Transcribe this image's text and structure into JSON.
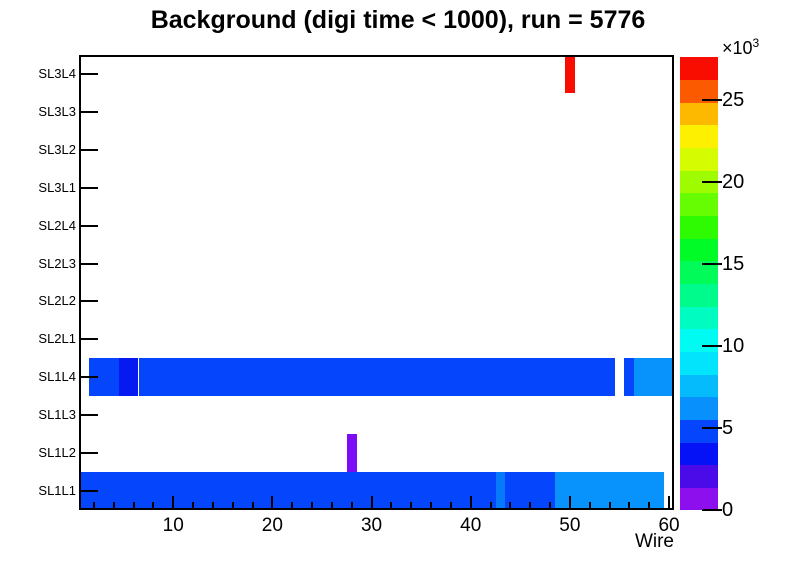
{
  "chart_data": {
    "type": "heatmap",
    "title": "Background (digi time < 1000), run = 5776",
    "xlabel": "Wire",
    "x_range": [
      0.5,
      60.5
    ],
    "x_major_ticks": [
      10,
      20,
      30,
      40,
      50,
      60
    ],
    "x_minor_tick_step": 2,
    "y_categories_bottom_to_top": [
      "SL1L1",
      "SL1L2",
      "SL1L3",
      "SL1L4",
      "SL2L1",
      "SL2L2",
      "SL2L3",
      "SL2L4",
      "SL3L1",
      "SL3L2",
      "SL3L3",
      "SL3L4"
    ],
    "grid": false,
    "colorbar": {
      "scale_label_base": "×10",
      "scale_label_exponent": "3",
      "ticks": [
        0,
        5,
        10,
        15,
        20,
        25
      ],
      "tick_unit": 1000,
      "zmin": 0,
      "zmax": 27600,
      "n_bands": 20,
      "palette_bottom_to_top": [
        "#8E0FEE",
        "#4A0BE8",
        "#0512F5",
        "#0545FC",
        "#0890FC",
        "#05BBFC",
        "#01E4FC",
        "#00FBF2",
        "#00FCC0",
        "#00FB8D",
        "#01FB59",
        "#01FB26",
        "#2EFB01",
        "#66FC01",
        "#9EFB00",
        "#D6FC01",
        "#FDF000",
        "#FDB900",
        "#FB5A00",
        "#F90D00"
      ]
    },
    "cells": [
      {
        "row": "SL3L4",
        "wire_start": 50,
        "wire_end": 50,
        "value": 27600,
        "color": "#F90D00"
      },
      {
        "row": "SL1L4",
        "wire_start": 2,
        "wire_end": 4,
        "value": 4800,
        "color": "#0545FC"
      },
      {
        "row": "SL1L4",
        "wire_start": 5,
        "wire_end": 6,
        "value": 3500,
        "color": "#0519F0"
      },
      {
        "row": "SL1L4",
        "wire_start": 7,
        "wire_end": 54,
        "value": 4800,
        "color": "#0545FC"
      },
      {
        "row": "SL1L4",
        "wire_start": 56,
        "wire_end": 56,
        "value": 4800,
        "color": "#0545FC"
      },
      {
        "row": "SL1L4",
        "wire_start": 57,
        "wire_end": 60,
        "value": 6500,
        "color": "#0893FC"
      },
      {
        "row": "SL1L2",
        "wire_start": 28,
        "wire_end": 28,
        "value": 1300,
        "color": "#7C0BF8"
      },
      {
        "row": "SL1L1",
        "wire_start": 1,
        "wire_end": 42,
        "value": 4800,
        "color": "#0545FC"
      },
      {
        "row": "SL1L1",
        "wire_start": 43,
        "wire_end": 43,
        "value": 6000,
        "color": "#0779FB"
      },
      {
        "row": "SL1L1",
        "wire_start": 44,
        "wire_end": 48,
        "value": 4800,
        "color": "#0545FC"
      },
      {
        "row": "SL1L1",
        "wire_start": 49,
        "wire_end": 59,
        "value": 6500,
        "color": "#0893FC"
      }
    ]
  },
  "colors": {
    "background": "#FFFFFF",
    "frame_border": "#000000",
    "text": "#000000"
  }
}
